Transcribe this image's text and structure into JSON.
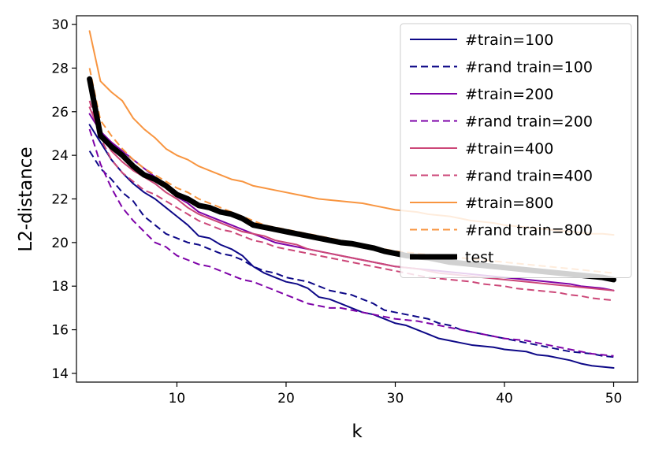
{
  "chart_data": {
    "type": "line",
    "title": "",
    "xlabel": "k",
    "ylabel": "L2-distance",
    "xlim": [
      0.8,
      52.2
    ],
    "ylim": [
      13.6,
      30.4
    ],
    "xticks": [
      10,
      20,
      30,
      40,
      50
    ],
    "yticks": [
      14,
      16,
      18,
      20,
      22,
      24,
      26,
      28,
      30
    ],
    "grid": false,
    "legend_position": "top-right",
    "x": [
      2,
      3,
      4,
      5,
      6,
      7,
      8,
      9,
      10,
      11,
      12,
      13,
      14,
      15,
      16,
      17,
      18,
      19,
      20,
      21,
      22,
      23,
      24,
      25,
      26,
      27,
      28,
      29,
      30,
      31,
      32,
      33,
      34,
      35,
      36,
      37,
      38,
      39,
      40,
      41,
      42,
      43,
      44,
      45,
      46,
      47,
      48,
      49,
      50
    ],
    "series": [
      {
        "name": "#train=100",
        "color": "#0d0887",
        "dash": "solid",
        "width": 2,
        "values": [
          25.4,
          24.6,
          23.8,
          23.2,
          22.7,
          22.3,
          22.0,
          21.6,
          21.2,
          20.8,
          20.3,
          20.2,
          19.9,
          19.7,
          19.4,
          18.9,
          18.6,
          18.4,
          18.2,
          18.1,
          17.9,
          17.5,
          17.4,
          17.2,
          17.0,
          16.8,
          16.7,
          16.5,
          16.3,
          16.2,
          16.0,
          15.8,
          15.6,
          15.5,
          15.4,
          15.3,
          15.25,
          15.2,
          15.1,
          15.05,
          15.0,
          14.85,
          14.8,
          14.7,
          14.6,
          14.45,
          14.35,
          14.3,
          14.25
        ]
      },
      {
        "name": "#rand train=100",
        "color": "#0d0887",
        "dash": "dashed",
        "width": 2,
        "values": [
          24.2,
          23.4,
          22.9,
          22.3,
          21.9,
          21.2,
          20.8,
          20.4,
          20.2,
          20.0,
          19.9,
          19.7,
          19.5,
          19.4,
          19.2,
          18.9,
          18.7,
          18.6,
          18.4,
          18.3,
          18.2,
          18.0,
          17.8,
          17.7,
          17.6,
          17.4,
          17.2,
          16.9,
          16.8,
          16.7,
          16.6,
          16.5,
          16.3,
          16.2,
          16.0,
          15.9,
          15.8,
          15.7,
          15.6,
          15.5,
          15.4,
          15.3,
          15.2,
          15.1,
          15.0,
          14.95,
          14.9,
          14.8,
          14.75
        ]
      },
      {
        "name": "#train=200",
        "color": "#7e03a8",
        "dash": "solid",
        "width": 2,
        "values": [
          25.9,
          25.1,
          24.6,
          24.2,
          23.8,
          23.4,
          23.0,
          22.6,
          22.1,
          21.8,
          21.4,
          21.2,
          21.0,
          20.8,
          20.6,
          20.4,
          20.2,
          20.0,
          19.9,
          19.8,
          19.7,
          19.6,
          19.5,
          19.4,
          19.3,
          19.2,
          19.1,
          19.0,
          18.9,
          18.85,
          18.8,
          18.75,
          18.7,
          18.65,
          18.6,
          18.55,
          18.5,
          18.45,
          18.4,
          18.35,
          18.3,
          18.25,
          18.2,
          18.15,
          18.1,
          18.0,
          17.95,
          17.9,
          17.8
        ]
      },
      {
        "name": "#rand train=200",
        "color": "#7e03a8",
        "dash": "dashed",
        "width": 2,
        "values": [
          25.2,
          23.6,
          22.5,
          21.6,
          21.0,
          20.5,
          20.0,
          19.8,
          19.4,
          19.2,
          19.0,
          18.9,
          18.7,
          18.5,
          18.3,
          18.2,
          18.0,
          17.8,
          17.6,
          17.4,
          17.2,
          17.1,
          17.0,
          17.0,
          16.9,
          16.8,
          16.7,
          16.6,
          16.5,
          16.45,
          16.4,
          16.3,
          16.2,
          16.1,
          16.0,
          15.9,
          15.8,
          15.7,
          15.6,
          15.55,
          15.5,
          15.4,
          15.3,
          15.2,
          15.1,
          15.0,
          14.9,
          14.85,
          14.8
        ]
      },
      {
        "name": "#train=400",
        "color": "#cc4778",
        "dash": "solid",
        "width": 2,
        "values": [
          26.2,
          25.0,
          24.2,
          23.7,
          23.3,
          23.0,
          22.7,
          22.3,
          22.0,
          21.6,
          21.3,
          21.1,
          20.9,
          20.7,
          20.5,
          20.4,
          20.3,
          20.1,
          20.0,
          19.9,
          19.7,
          19.6,
          19.5,
          19.4,
          19.3,
          19.2,
          19.1,
          19.0,
          18.9,
          18.85,
          18.8,
          18.7,
          18.6,
          18.55,
          18.5,
          18.45,
          18.4,
          18.35,
          18.3,
          18.25,
          18.2,
          18.15,
          18.1,
          18.05,
          18.0,
          17.95,
          17.9,
          17.85,
          17.8
        ]
      },
      {
        "name": "#rand train=400",
        "color": "#cc4778",
        "dash": "dashed",
        "width": 2,
        "values": [
          26.5,
          24.8,
          23.8,
          23.2,
          22.8,
          22.4,
          22.2,
          21.9,
          21.6,
          21.3,
          21.0,
          20.8,
          20.6,
          20.5,
          20.3,
          20.1,
          20.0,
          19.8,
          19.7,
          19.6,
          19.5,
          19.4,
          19.3,
          19.2,
          19.1,
          19.0,
          18.9,
          18.8,
          18.7,
          18.6,
          18.5,
          18.4,
          18.35,
          18.3,
          18.25,
          18.2,
          18.1,
          18.05,
          18.0,
          17.9,
          17.85,
          17.8,
          17.75,
          17.7,
          17.6,
          17.55,
          17.45,
          17.4,
          17.35
        ]
      },
      {
        "name": "#train=800",
        "color": "#f89540",
        "dash": "solid",
        "width": 2,
        "values": [
          29.7,
          27.4,
          26.9,
          26.5,
          25.7,
          25.2,
          24.8,
          24.3,
          24.0,
          23.8,
          23.5,
          23.3,
          23.1,
          22.9,
          22.8,
          22.6,
          22.5,
          22.4,
          22.3,
          22.2,
          22.1,
          22.0,
          21.95,
          21.9,
          21.85,
          21.8,
          21.7,
          21.6,
          21.5,
          21.45,
          21.4,
          21.3,
          21.25,
          21.2,
          21.1,
          21.0,
          20.95,
          20.9,
          20.8,
          20.75,
          20.7,
          20.65,
          20.6,
          20.55,
          20.5,
          20.45,
          20.4,
          20.4,
          20.35
        ]
      },
      {
        "name": "#rand train=800",
        "color": "#f89540",
        "dash": "dashed",
        "width": 2,
        "values": [
          28.0,
          25.6,
          24.9,
          24.3,
          23.8,
          23.4,
          23.1,
          22.8,
          22.5,
          22.3,
          22.0,
          21.8,
          21.6,
          21.4,
          21.2,
          21.0,
          20.8,
          20.7,
          20.6,
          20.5,
          20.4,
          20.3,
          20.2,
          20.1,
          20.0,
          19.9,
          19.8,
          19.7,
          19.6,
          19.55,
          19.5,
          19.45,
          19.4,
          19.35,
          19.3,
          19.25,
          19.2,
          19.15,
          19.1,
          19.05,
          19.0,
          18.95,
          18.9,
          18.85,
          18.8,
          18.75,
          18.7,
          18.65,
          18.6
        ]
      },
      {
        "name": "test",
        "color": "#000000",
        "dash": "solid",
        "width": 7,
        "values": [
          27.5,
          24.9,
          24.4,
          24.0,
          23.5,
          23.1,
          22.9,
          22.6,
          22.2,
          22.0,
          21.7,
          21.6,
          21.4,
          21.3,
          21.1,
          20.8,
          20.7,
          20.6,
          20.5,
          20.4,
          20.3,
          20.2,
          20.1,
          20.0,
          19.95,
          19.85,
          19.75,
          19.6,
          19.5,
          19.4,
          19.35,
          19.3,
          19.2,
          19.1,
          19.05,
          19.0,
          18.95,
          18.9,
          18.85,
          18.8,
          18.75,
          18.7,
          18.65,
          18.6,
          18.55,
          18.5,
          18.45,
          18.4,
          18.3
        ]
      }
    ]
  }
}
